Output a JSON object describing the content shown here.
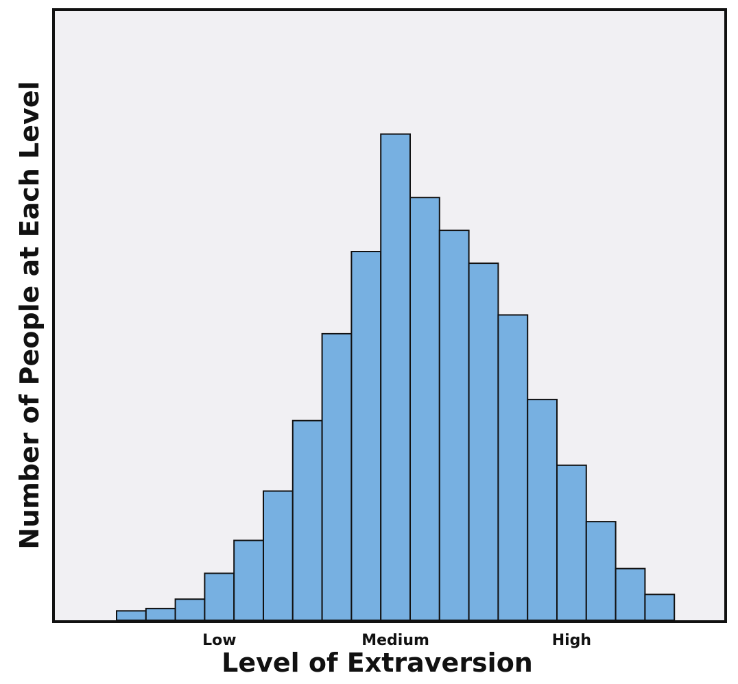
{
  "chart_data": {
    "type": "bar",
    "title": "",
    "xlabel": "Level of Extraversion",
    "ylabel": "Number of People at Each Level",
    "x_tick_labels": [
      {
        "label": "Low",
        "bin": 3
      },
      {
        "label": "Medium",
        "bin": 9
      },
      {
        "label": "High",
        "bin": 15
      }
    ],
    "values": [
      2.0,
      2.5,
      4.5,
      10.0,
      17.0,
      27.5,
      42.5,
      61.0,
      78.5,
      103.5,
      90.0,
      83.0,
      76.0,
      65.0,
      47.0,
      33.0,
      21.0,
      11.0,
      5.5
    ],
    "ylim": [
      0,
      130
    ],
    "grid": false,
    "legend": "none",
    "colors": {
      "bar_fill": "#77b0e1",
      "bar_stroke": "#111111",
      "plot_background": "#f1f0f3",
      "frame": "#111111"
    }
  }
}
